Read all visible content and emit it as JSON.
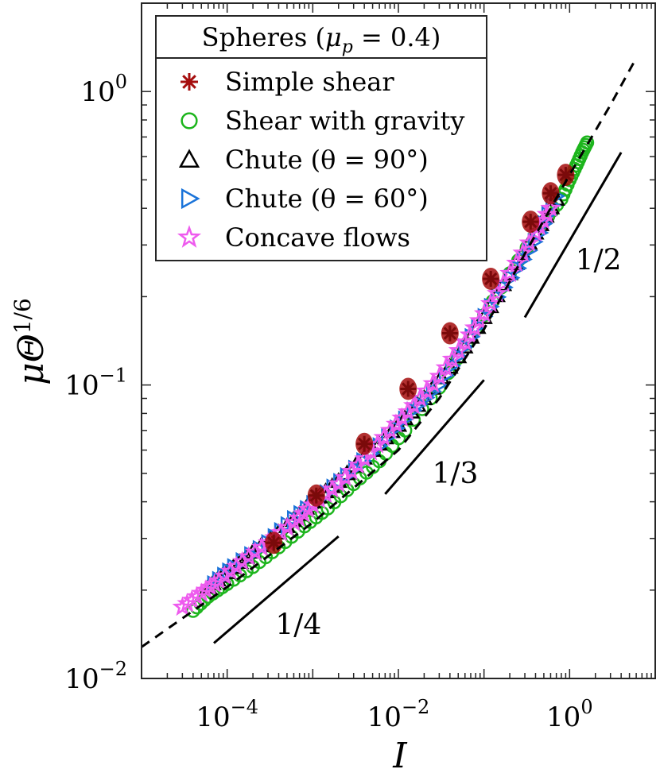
{
  "chart_data": {
    "type": "scatter",
    "title": "",
    "xlabel": "I",
    "ylabel": "μΘ^{1/6}",
    "xscale": "log",
    "yscale": "log",
    "xlim": [
      1e-05,
      10
    ],
    "ylim": [
      0.01,
      2
    ],
    "x_ticks": [
      {
        "base": "10",
        "exp": "−4",
        "value": 0.0001
      },
      {
        "base": "10",
        "exp": "−2",
        "value": 0.01
      },
      {
        "base": "10",
        "exp": "0",
        "value": 1
      }
    ],
    "y_ticks": [
      {
        "base": "10",
        "exp": "−2",
        "value": 0.01
      },
      {
        "base": "10",
        "exp": "−1",
        "value": 0.1
      },
      {
        "base": "10",
        "exp": "0",
        "value": 1
      }
    ],
    "legend": {
      "title": "Spheres (μ_p = 0.4)",
      "title_parts": {
        "prefix": "Spheres (",
        "mu": "μ",
        "sub": "p",
        "rest": " = 0.4)"
      },
      "placement": "top-left",
      "entries": [
        {
          "label": "Simple shear",
          "marker": "asterisk",
          "color": "#a50d0d"
        },
        {
          "label": "Shear with gravity",
          "marker": "circle",
          "color": "#1db51d"
        },
        {
          "label": "Chute (θ = 90°)",
          "marker": "triangle-up",
          "color": "#000000"
        },
        {
          "label": "Chute (θ = 60°)",
          "marker": "triangle-right",
          "color": "#1a73d9"
        },
        {
          "label": "Concave flows",
          "marker": "star",
          "color": "#ee5bee"
        }
      ]
    },
    "fit_curve": {
      "style": "dashed",
      "color": "#000000",
      "x": [
        1e-05,
        0.0001,
        0.001,
        0.01,
        0.03,
        0.1,
        0.3,
        1,
        3,
        6
      ],
      "y": [
        0.0128,
        0.0205,
        0.034,
        0.06,
        0.09,
        0.155,
        0.28,
        0.52,
        0.9,
        1.3
      ]
    },
    "slope_guides": [
      {
        "label": "1/4",
        "slope": 0.25,
        "x": [
          7e-05,
          0.002
        ],
        "y": [
          0.0132,
          0.0305
        ]
      },
      {
        "label": "1/3",
        "slope": 0.3333,
        "x": [
          0.007,
          0.1
        ],
        "y": [
          0.0425,
          0.104
        ]
      },
      {
        "label": "1/2",
        "slope": 0.5,
        "x": [
          0.3,
          4
        ],
        "y": [
          0.17,
          0.62
        ]
      }
    ],
    "series": [
      {
        "name": "Simple shear",
        "marker": "asterisk",
        "color": "#a50d0d",
        "x": [
          0.00035,
          0.0011,
          0.004,
          0.013,
          0.04,
          0.12,
          0.35,
          0.6,
          0.9
        ],
        "y": [
          0.029,
          0.042,
          0.063,
          0.097,
          0.15,
          0.23,
          0.36,
          0.45,
          0.52
        ]
      },
      {
        "name": "Shear with gravity",
        "marker": "circle",
        "color": "#1db51d",
        "x": [
          4e-05,
          6e-05,
          0.0001,
          0.0002,
          0.0004,
          0.0008,
          0.0015,
          0.003,
          0.006,
          0.012,
          0.03,
          0.08,
          0.2,
          0.5,
          0.8,
          1.0,
          1.2,
          1.4,
          1.6
        ],
        "y": [
          0.017,
          0.019,
          0.021,
          0.024,
          0.028,
          0.033,
          0.038,
          0.046,
          0.055,
          0.07,
          0.098,
          0.155,
          0.24,
          0.36,
          0.43,
          0.5,
          0.56,
          0.62,
          0.67
        ]
      },
      {
        "name": "Chute (θ = 90°)",
        "marker": "triangle-up",
        "color": "#000000",
        "x": [
          6e-05,
          0.0001,
          0.0002,
          0.0005,
          0.001,
          0.002,
          0.005,
          0.01,
          0.02,
          0.05,
          0.1,
          0.2,
          0.4,
          0.7
        ],
        "y": [
          0.0205,
          0.023,
          0.027,
          0.033,
          0.04,
          0.047,
          0.06,
          0.073,
          0.09,
          0.125,
          0.17,
          0.24,
          0.33,
          0.43
        ]
      },
      {
        "name": "Chute (θ = 60°)",
        "marker": "triangle-right",
        "color": "#1a73d9",
        "x": [
          7e-05,
          0.00012,
          0.0003,
          0.0006,
          0.0012,
          0.0025,
          0.006,
          0.015,
          0.03,
          0.06,
          0.12,
          0.25,
          0.45,
          0.7
        ],
        "y": [
          0.021,
          0.024,
          0.029,
          0.035,
          0.041,
          0.049,
          0.062,
          0.082,
          0.1,
          0.135,
          0.185,
          0.25,
          0.33,
          0.44
        ]
      },
      {
        "name": "Concave flows",
        "marker": "star",
        "color": "#ee5bee",
        "x": [
          3e-05,
          5e-05,
          8e-05,
          0.00015,
          0.0003,
          0.0006,
          0.001,
          0.002,
          0.004,
          0.008,
          0.015,
          0.03,
          0.06,
          0.1,
          0.2,
          0.4,
          0.6
        ],
        "y": [
          0.0175,
          0.0195,
          0.0215,
          0.025,
          0.029,
          0.034,
          0.039,
          0.046,
          0.056,
          0.07,
          0.085,
          0.107,
          0.14,
          0.175,
          0.24,
          0.33,
          0.4
        ]
      }
    ]
  }
}
